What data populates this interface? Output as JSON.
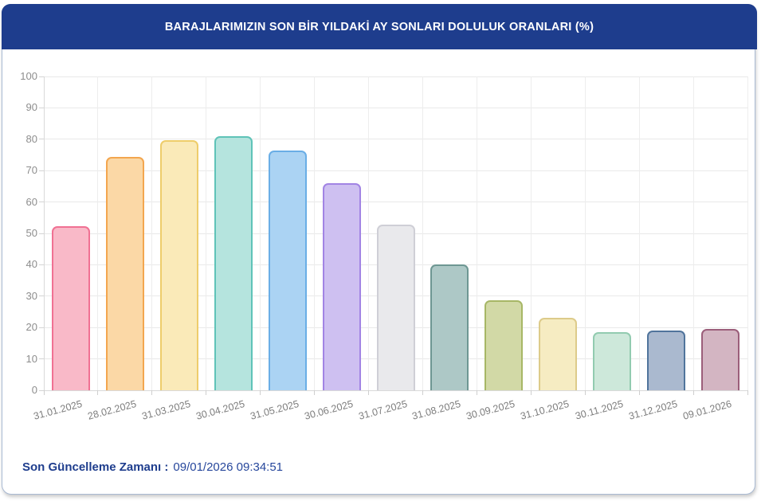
{
  "header": {
    "title": "BARAJLARIMIZIN SON BİR YILDAKİ AY SONLARI DOLULUK ORANLARI (%)"
  },
  "footer": {
    "label": "Son Güncelleme Zamanı :",
    "value": "09/01/2026 09:34:51"
  },
  "colors": {
    "header_bg": "#1e3d8d",
    "card_border": "#a9bad3",
    "footer_text": "#1e3d8d",
    "axis_label": "#8d8d8d",
    "grid_line": "#e9e9e9"
  },
  "chart_data": {
    "type": "bar",
    "title": "BARAJLARIMIZIN SON BİR YILDAKİ AY SONLARI DOLULUK ORANLARI (%)",
    "xlabel": "",
    "ylabel": "",
    "ylim": [
      0,
      100
    ],
    "yticks": [
      0,
      10,
      20,
      30,
      40,
      50,
      60,
      70,
      80,
      90,
      100
    ],
    "grid": true,
    "legend": false,
    "categories": [
      "31.01.2025",
      "28.02.2025",
      "31.03.2025",
      "30.04.2025",
      "31.05.2025",
      "30.06.2025",
      "31.07.2025",
      "31.08.2025",
      "30.09.2025",
      "31.10.2025",
      "30.11.2025",
      "31.12.2025",
      "09.01.2026"
    ],
    "values": [
      52.2,
      74.3,
      79.6,
      81.0,
      76.3,
      65.9,
      52.9,
      40.2,
      28.7,
      23.0,
      18.6,
      19.0,
      19.5
    ],
    "bar_colors": [
      {
        "fill": "#f9b9c8",
        "border": "#f07193"
      },
      {
        "fill": "#fbd8a6",
        "border": "#f3a64f"
      },
      {
        "fill": "#faeab8",
        "border": "#eecd6b"
      },
      {
        "fill": "#b5e4de",
        "border": "#5fc3b8"
      },
      {
        "fill": "#abd3f3",
        "border": "#6aaee6"
      },
      {
        "fill": "#cec0f1",
        "border": "#a284e4"
      },
      {
        "fill": "#e9e9ec",
        "border": "#cfcfd6"
      },
      {
        "fill": "#adc8c6",
        "border": "#6e9793"
      },
      {
        "fill": "#d2d9a6",
        "border": "#a7b766"
      },
      {
        "fill": "#f6ecc2",
        "border": "#ddcb8a"
      },
      {
        "fill": "#cde8da",
        "border": "#92cbb0"
      },
      {
        "fill": "#aab9cf",
        "border": "#50749c"
      },
      {
        "fill": "#d3b5c2",
        "border": "#9b5e7a"
      }
    ]
  }
}
